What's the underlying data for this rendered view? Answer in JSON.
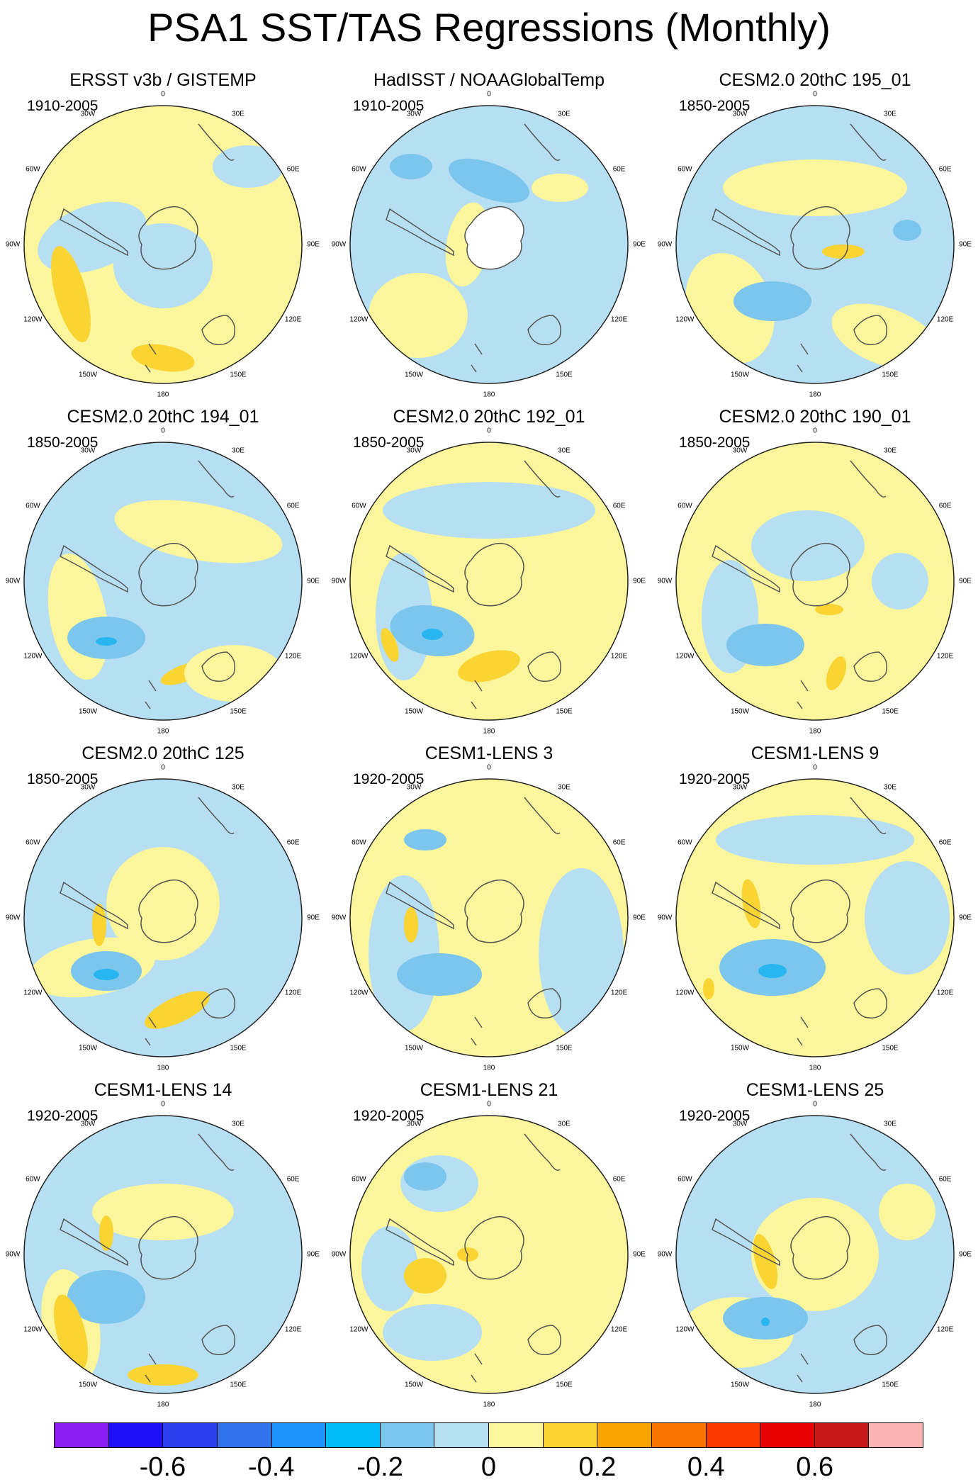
{
  "title": "PSA1 SST/TAS Regressions (Monthly)",
  "colors": {
    "neg1": "#b7dff3",
    "neg2": "#7cc6ee",
    "neg3": "#28b6f0",
    "pos1": "#fbf59b",
    "pos2": "#f9d432",
    "land": "#ffffff",
    "coast": "#555555",
    "rim": "#222222"
  },
  "lon_labels": [
    "0",
    "30E",
    "60E",
    "90E",
    "120E",
    "150E",
    "180",
    "150W",
    "120W",
    "90W",
    "60W",
    "30W"
  ],
  "panels": [
    {
      "title": "ERSST v3b / GISTEMP",
      "period": "1910-2005",
      "background": "pos1"
    },
    {
      "title": "HadISST / NOAAGlobalTemp",
      "period": "1910-2005",
      "background": "neg1"
    },
    {
      "title": "CESM2.0 20thC 195_01",
      "period": "1850-2005",
      "background": "neg1"
    },
    {
      "title": "CESM2.0 20thC 194_01",
      "period": "1850-2005",
      "background": "neg1"
    },
    {
      "title": "CESM2.0 20thC 192_01",
      "period": "1850-2005",
      "background": "pos1"
    },
    {
      "title": "CESM2.0 20thC 190_01",
      "period": "1850-2005",
      "background": "pos1"
    },
    {
      "title": "CESM2.0 20thC 125",
      "period": "1850-2005",
      "background": "neg1"
    },
    {
      "title": "CESM1-LENS 3",
      "period": "1920-2005",
      "background": "pos1"
    },
    {
      "title": "CESM1-LENS 9",
      "period": "1920-2005",
      "background": "pos1"
    },
    {
      "title": "CESM1-LENS 14",
      "period": "1920-2005",
      "background": "neg1"
    },
    {
      "title": "CESM1-LENS 21",
      "period": "1920-2005",
      "background": "pos1"
    },
    {
      "title": "CESM1-LENS 25",
      "period": "1920-2005",
      "background": "neg1"
    }
  ],
  "colorbar": {
    "colors": [
      "#8a1ef0",
      "#1e10f8",
      "#2a40ee",
      "#3272ea",
      "#1c94fa",
      "#00bdf8",
      "#7cc6ee",
      "#b7dff3",
      "#fbf59b",
      "#f9d432",
      "#f9a400",
      "#f97400",
      "#fb3a00",
      "#e80000",
      "#c81818",
      "#fbb4b4"
    ],
    "labels": [
      "-0.6",
      "-0.4",
      "-0.2",
      "0",
      "0.2",
      "0.4",
      "0.6"
    ]
  }
}
